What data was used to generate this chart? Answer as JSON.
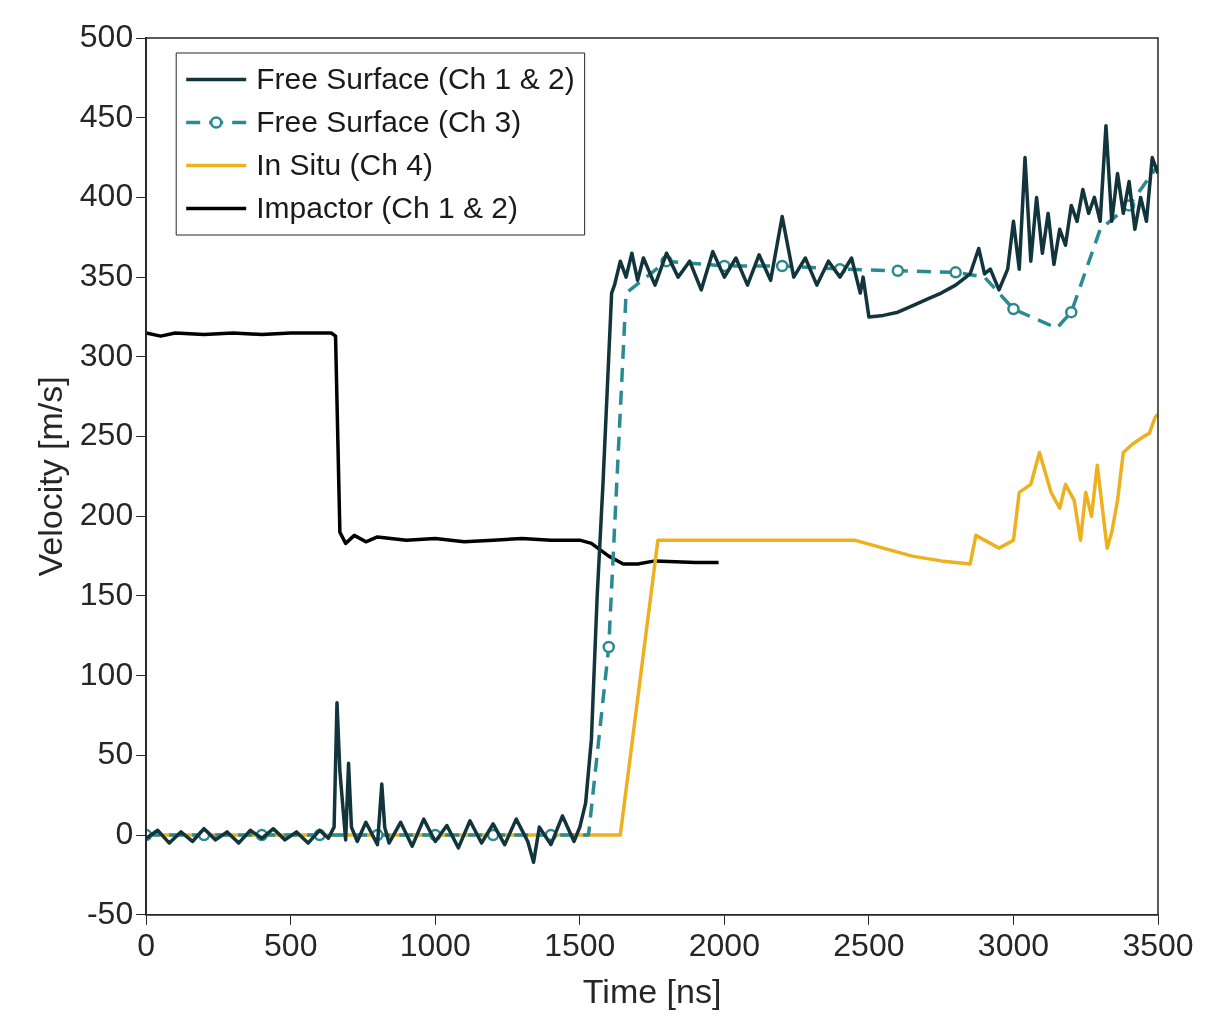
{
  "chart_data": {
    "type": "line",
    "xlabel": "Time [ns]",
    "ylabel": "Velocity [m/s]",
    "xlim": [
      0,
      3500
    ],
    "xticks": [
      0,
      500,
      1000,
      1500,
      2000,
      2500,
      3000,
      3500
    ],
    "ylim": [
      -50,
      500
    ],
    "yticks": [
      -50,
      0,
      50,
      100,
      150,
      200,
      250,
      300,
      350,
      400,
      450,
      500
    ],
    "grid": false,
    "legend": "top left",
    "series": [
      {
        "name": "Free Surface (Ch 1 & 2)",
        "color": "#12343b",
        "line_style": "solid",
        "marker": "none",
        "x": [
          0,
          40,
          80,
          120,
          160,
          200,
          240,
          280,
          320,
          360,
          400,
          440,
          480,
          520,
          560,
          600,
          630,
          650,
          660,
          670,
          690,
          700,
          710,
          730,
          760,
          800,
          815,
          825,
          840,
          880,
          920,
          960,
          1000,
          1040,
          1080,
          1120,
          1160,
          1200,
          1240,
          1280,
          1320,
          1340,
          1360,
          1400,
          1440,
          1480,
          1500,
          1520,
          1540,
          1560,
          1580,
          1600,
          1610,
          1620,
          1640,
          1660,
          1680,
          1700,
          1720,
          1760,
          1800,
          1840,
          1880,
          1920,
          1960,
          2000,
          2040,
          2080,
          2120,
          2160,
          2200,
          2240,
          2280,
          2320,
          2360,
          2400,
          2440,
          2470,
          2480,
          2500,
          2550,
          2600,
          2650,
          2700,
          2750,
          2800,
          2850,
          2880,
          2900,
          2920,
          2950,
          2980,
          3000,
          3020,
          3040,
          3060,
          3080,
          3100,
          3120,
          3140,
          3160,
          3180,
          3200,
          3220,
          3240,
          3260,
          3280,
          3300,
          3320,
          3340,
          3360,
          3380,
          3400,
          3420,
          3440,
          3460,
          3480,
          3500
        ],
        "values": [
          -2,
          3,
          -5,
          2,
          -4,
          4,
          -3,
          2,
          -5,
          3,
          -2,
          4,
          -3,
          2,
          -5,
          3,
          -2,
          5,
          83,
          40,
          -3,
          45,
          5,
          -4,
          8,
          -6,
          32,
          5,
          -5,
          8,
          -7,
          10,
          -4,
          6,
          -8,
          9,
          -5,
          7,
          -6,
          10,
          -4,
          -17,
          5,
          -6,
          12,
          -4,
          5,
          20,
          60,
          150,
          220,
          300,
          340,
          345,
          360,
          350,
          365,
          348,
          362,
          345,
          365,
          350,
          360,
          342,
          366,
          350,
          362,
          345,
          364,
          348,
          388,
          350,
          362,
          345,
          360,
          350,
          362,
          340,
          350,
          325,
          326,
          328,
          332,
          336,
          340,
          345,
          352,
          368,
          352,
          355,
          342,
          355,
          385,
          355,
          425,
          360,
          400,
          365,
          390,
          358,
          380,
          370,
          395,
          385,
          405,
          390,
          400,
          385,
          445,
          385,
          415,
          390,
          410,
          380,
          400,
          385,
          425,
          415
        ]
      },
      {
        "name": "Free Surface (Ch 3)",
        "color": "#2a8a92",
        "line_style": "dashed",
        "marker": "circle",
        "x": [
          0,
          200,
          400,
          600,
          800,
          1000,
          1200,
          1400,
          1530,
          1600,
          1660,
          1800,
          2000,
          2200,
          2400,
          2600,
          2800,
          2900,
          3000,
          3150,
          3200,
          3300,
          3400,
          3500
        ],
        "values": [
          0,
          0,
          0,
          0,
          0,
          0,
          0,
          0,
          0,
          118,
          340,
          360,
          357,
          357,
          355,
          354,
          353,
          350,
          330,
          318,
          328,
          380,
          395,
          420
        ]
      },
      {
        "name": "In Situ (Ch 4)",
        "color": "#edb120",
        "line_style": "solid",
        "marker": "none",
        "x": [
          0,
          1640,
          1770,
          1800,
          2000,
          2200,
          2450,
          2550,
          2650,
          2750,
          2850,
          2870,
          2950,
          3000,
          3020,
          3060,
          3090,
          3130,
          3160,
          3180,
          3210,
          3232,
          3250,
          3270,
          3290,
          3324,
          3340,
          3360,
          3380,
          3410,
          3450,
          3470,
          3490,
          3500
        ],
        "values": [
          0,
          0,
          185,
          185,
          185,
          185,
          185,
          180,
          175,
          172,
          170,
          188,
          180,
          185,
          215,
          220,
          240,
          215,
          205,
          220,
          210,
          185,
          215,
          200,
          232,
          180,
          190,
          210,
          240,
          245,
          250,
          252,
          262,
          264
        ]
      },
      {
        "name": "Impactor (Ch 1 & 2)",
        "color": "#000000",
        "line_style": "solid",
        "marker": "none",
        "x": [
          0,
          50,
          100,
          200,
          300,
          400,
          500,
          600,
          640,
          655,
          670,
          690,
          720,
          760,
          800,
          900,
          1000,
          1100,
          1200,
          1300,
          1400,
          1500,
          1540,
          1600,
          1650,
          1700,
          1760,
          1900,
          1980
        ],
        "values": [
          315,
          313,
          315,
          314,
          315,
          314,
          315,
          315,
          315,
          313,
          190,
          183,
          188,
          184,
          187,
          185,
          186,
          184,
          185,
          186,
          185,
          185,
          183,
          175,
          170,
          170,
          172,
          171,
          171
        ]
      }
    ]
  }
}
